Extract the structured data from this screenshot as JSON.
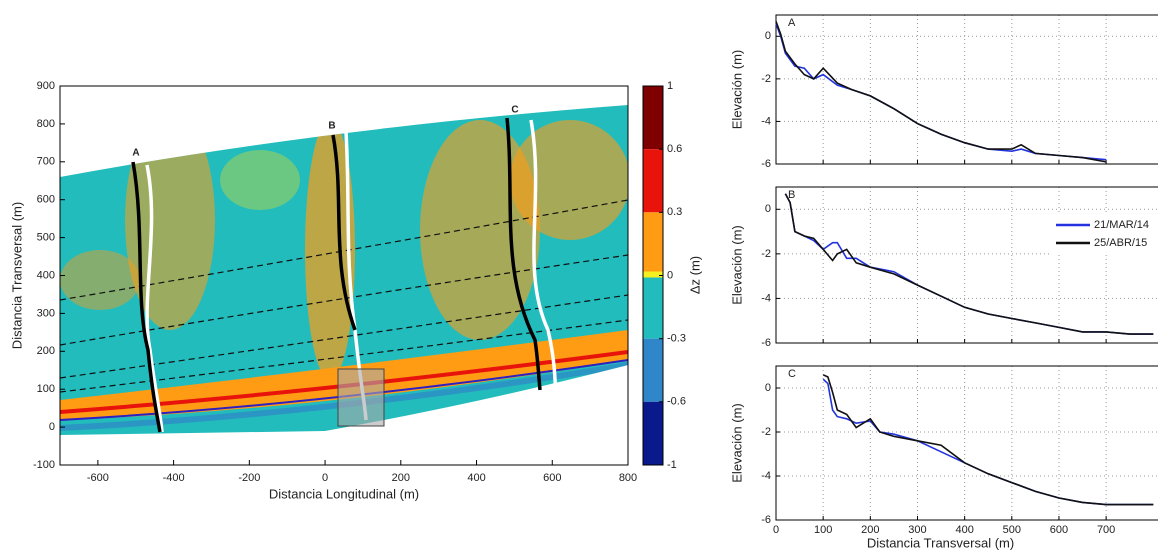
{
  "chart_data": [
    {
      "type": "map",
      "xlabel": "Distancia Longitudinal (m)",
      "ylabel": "Distancia Transversal (m)",
      "xlim": [
        -700,
        800
      ],
      "ylim": [
        -100,
        900
      ],
      "xticks": [
        -600,
        -400,
        -200,
        0,
        200,
        400,
        600,
        800
      ],
      "yticks": [
        -100,
        0,
        100,
        200,
        300,
        400,
        500,
        600,
        700,
        800,
        900
      ],
      "profile_labels": [
        "A",
        "B",
        "C"
      ],
      "colorbar": {
        "label": "Δz (m)",
        "ticks": [
          1,
          0.6,
          0.3,
          0,
          -0.3,
          -0.6,
          -1
        ],
        "colors": [
          "#7f0000",
          "#e8140c",
          "#ff9c14",
          "#22bcbc",
          "#2f86c8",
          "#0a1a8c"
        ]
      }
    },
    {
      "type": "line",
      "panel_label": "A",
      "ylabel": "Elevación (m)",
      "xlim": [
        0,
        810
      ],
      "ylim": [
        -6,
        1
      ],
      "xticks": [
        0,
        100,
        200,
        300,
        400,
        500,
        600,
        700
      ],
      "yticks": [
        -6,
        -4,
        -2,
        0
      ],
      "grid": true,
      "show_xtick_labels": false,
      "series": [
        {
          "color": "#2233dd",
          "x": [
            0,
            10,
            20,
            40,
            60,
            80,
            100,
            130,
            160,
            200,
            250,
            300,
            350,
            400,
            450,
            500,
            520,
            550,
            600,
            650,
            700
          ],
          "values": [
            0.6,
            0,
            -0.8,
            -1.4,
            -1.5,
            -2.0,
            -1.8,
            -2.3,
            -2.5,
            -2.8,
            -3.4,
            -4.1,
            -4.6,
            -5.0,
            -5.3,
            -5.4,
            -5.3,
            -5.5,
            -5.6,
            -5.7,
            -5.8
          ]
        },
        {
          "color": "#111111",
          "x": [
            0,
            10,
            20,
            40,
            60,
            80,
            100,
            130,
            160,
            200,
            250,
            300,
            350,
            400,
            450,
            500,
            520,
            550,
            600,
            650,
            700
          ],
          "values": [
            0.7,
            0.1,
            -0.7,
            -1.3,
            -1.8,
            -2.0,
            -1.5,
            -2.2,
            -2.5,
            -2.8,
            -3.4,
            -4.1,
            -4.6,
            -5.0,
            -5.3,
            -5.3,
            -5.1,
            -5.5,
            -5.6,
            -5.7,
            -5.9
          ]
        }
      ]
    },
    {
      "type": "line",
      "panel_label": "B",
      "ylabel": "Elevación (m)",
      "xlim": [
        0,
        810
      ],
      "ylim": [
        -6,
        1
      ],
      "xticks": [
        0,
        100,
        200,
        300,
        400,
        500,
        600,
        700
      ],
      "yticks": [
        -6,
        -4,
        -2,
        0
      ],
      "grid": true,
      "show_xtick_labels": false,
      "legend": "upper right",
      "series": [
        {
          "name": "21/MAR/14",
          "color": "#2233dd",
          "x": [
            20,
            30,
            40,
            60,
            80,
            100,
            120,
            130,
            150,
            170,
            200,
            250,
            300,
            350,
            400,
            450,
            500,
            550,
            600,
            650,
            700,
            750,
            800
          ],
          "values": [
            0.7,
            0.3,
            -1.0,
            -1.2,
            -1.4,
            -1.8,
            -1.5,
            -1.5,
            -2.2,
            -2.2,
            -2.6,
            -2.8,
            -3.4,
            -3.9,
            -4.4,
            -4.7,
            -4.9,
            -5.1,
            -5.3,
            -5.5,
            -5.5,
            -5.6,
            -5.6
          ]
        },
        {
          "name": "25/ABR/15",
          "color": "#111111",
          "x": [
            20,
            30,
            40,
            60,
            80,
            100,
            120,
            130,
            150,
            170,
            200,
            250,
            300,
            350,
            400,
            450,
            500,
            550,
            600,
            650,
            700,
            750,
            800
          ],
          "values": [
            0.7,
            0.3,
            -1.0,
            -1.2,
            -1.3,
            -1.8,
            -2.3,
            -2.0,
            -1.8,
            -2.4,
            -2.6,
            -2.9,
            -3.4,
            -3.9,
            -4.4,
            -4.7,
            -4.9,
            -5.1,
            -5.3,
            -5.5,
            -5.5,
            -5.6,
            -5.6
          ]
        }
      ]
    },
    {
      "type": "line",
      "panel_label": "C",
      "ylabel": "Elevación (m)",
      "xlabel": "Distancia Transversal (m)",
      "xlim": [
        0,
        810
      ],
      "ylim": [
        -6,
        1
      ],
      "xticks": [
        0,
        100,
        200,
        300,
        400,
        500,
        600,
        700
      ],
      "yticks": [
        -6,
        -4,
        -2,
        0
      ],
      "grid": true,
      "show_xtick_labels": true,
      "series": [
        {
          "color": "#2233dd",
          "x": [
            100,
            110,
            120,
            130,
            150,
            170,
            200,
            220,
            250,
            300,
            350,
            400,
            450,
            500,
            550,
            600,
            650,
            700,
            750,
            800
          ],
          "values": [
            0.4,
            0.2,
            -1.0,
            -1.3,
            -1.4,
            -1.6,
            -1.5,
            -2.0,
            -2.1,
            -2.4,
            -2.9,
            -3.4,
            -3.9,
            -4.3,
            -4.7,
            -5.0,
            -5.2,
            -5.3,
            -5.3,
            -5.3
          ]
        },
        {
          "color": "#111111",
          "x": [
            100,
            110,
            120,
            130,
            150,
            170,
            200,
            220,
            250,
            300,
            350,
            400,
            450,
            500,
            550,
            600,
            650,
            700,
            750,
            800
          ],
          "values": [
            0.6,
            0.5,
            -0.2,
            -1.0,
            -1.2,
            -1.8,
            -1.4,
            -2.0,
            -2.2,
            -2.4,
            -2.6,
            -3.4,
            -3.9,
            -4.3,
            -4.7,
            -5.0,
            -5.2,
            -5.3,
            -5.3,
            -5.3
          ]
        }
      ]
    }
  ]
}
